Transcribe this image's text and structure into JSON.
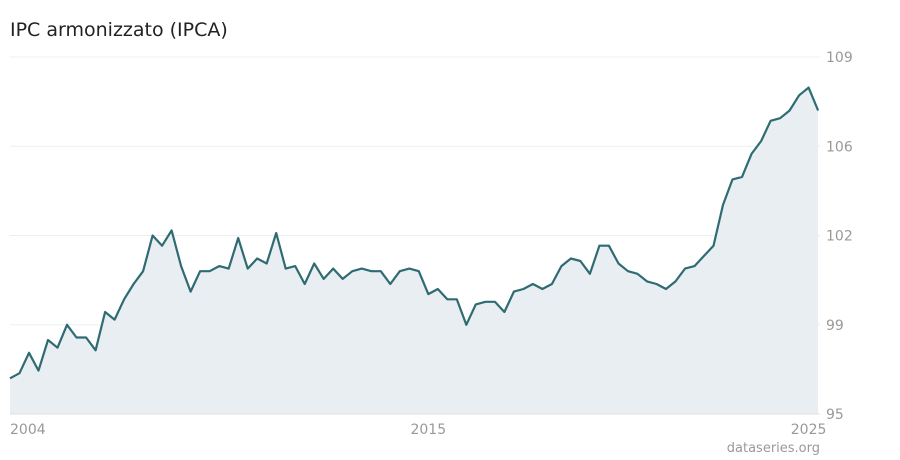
{
  "chart_data": {
    "type": "area",
    "title": "IPC armonizzato (IPCA)",
    "source": "dataseries.org",
    "color": "#2f6b73",
    "fill": "#e8eef1",
    "grid": true,
    "x": [
      2004,
      2004.25,
      2004.5,
      2004.75,
      2005,
      2005.25,
      2005.5,
      2005.75,
      2006,
      2006.25,
      2006.5,
      2006.75,
      2007,
      2007.25,
      2007.5,
      2007.75,
      2008,
      2008.25,
      2008.5,
      2008.75,
      2009,
      2009.25,
      2009.5,
      2009.75,
      2010,
      2010.25,
      2010.5,
      2010.75,
      2011,
      2011.25,
      2011.5,
      2011.75,
      2012,
      2012.25,
      2012.5,
      2012.75,
      2013,
      2013.25,
      2013.5,
      2013.75,
      2014,
      2014.25,
      2014.5,
      2014.75,
      2015,
      2015.25,
      2015.5,
      2015.75,
      2016,
      2016.25,
      2016.5,
      2016.75,
      2017,
      2017.25,
      2017.5,
      2017.75,
      2018,
      2018.25,
      2018.5,
      2018.75,
      2019,
      2019.25,
      2019.5,
      2019.75,
      2020,
      2020.25,
      2020.5,
      2020.75,
      2021,
      2021.25,
      2021.5,
      2021.75,
      2022,
      2022.25,
      2022.5,
      2022.75,
      2023,
      2023.25,
      2023.5,
      2023.75,
      2024,
      2024.25,
      2024.5,
      2024.75,
      2025,
      2025.25
    ],
    "values": [
      96.4,
      96.6,
      97.4,
      96.7,
      97.9,
      97.6,
      98.5,
      98.0,
      98.0,
      97.5,
      99.0,
      98.7,
      99.5,
      100.1,
      100.6,
      102.0,
      101.6,
      102.2,
      100.8,
      99.8,
      100.6,
      100.6,
      100.8,
      100.7,
      101.9,
      100.7,
      101.1,
      100.9,
      102.1,
      100.7,
      100.8,
      100.1,
      100.9,
      100.3,
      100.7,
      100.3,
      100.6,
      100.7,
      100.6,
      100.6,
      100.1,
      100.6,
      100.7,
      100.6,
      99.7,
      99.9,
      99.5,
      99.5,
      98.5,
      99.3,
      99.4,
      99.4,
      99.0,
      99.8,
      99.9,
      100.1,
      99.9,
      100.1,
      100.8,
      101.1,
      101.0,
      100.5,
      101.6,
      101.6,
      100.9,
      100.6,
      100.5,
      100.2,
      100.1,
      99.9,
      100.2,
      100.7,
      100.8,
      101.2,
      101.6,
      103.2,
      104.2,
      104.3,
      105.2,
      105.7,
      106.5,
      106.6,
      106.9,
      107.5,
      107.8,
      106.9
    ],
    "xlim": [
      2004,
      2025.3
    ],
    "xticks": [
      2004,
      2015,
      2025
    ],
    "ylim": [
      95,
      109
    ],
    "yticks": [
      95,
      {
        "value": 98.5,
        "label": "99"
      },
      102,
      {
        "value": 105.5,
        "label": "106"
      },
      109
    ]
  }
}
